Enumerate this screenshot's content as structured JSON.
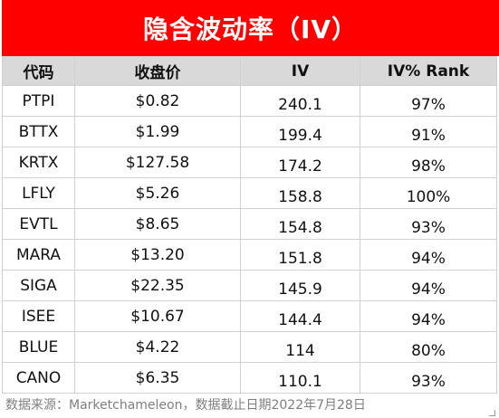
{
  "title": "隐含波动率（IV）",
  "headers": [
    "代码",
    "收盘价",
    "IV",
    "IV% Rank"
  ],
  "rows": [
    {
      "ticker": "PTPI",
      "price": "$0.82",
      "iv": "240.1",
      "rank": "97%"
    },
    {
      "ticker": "BTTX",
      "price": "$1.99",
      "iv": "199.4",
      "rank": "91%"
    },
    {
      "ticker": "KRTX",
      "price": "$127.58",
      "iv": "174.2",
      "rank": "98%"
    },
    {
      "ticker": "LFLY",
      "price": "$5.26",
      "iv": "158.8",
      "rank": "100%"
    },
    {
      "ticker": "EVTL",
      "price": "$8.65",
      "iv": "154.8",
      "rank": "93%"
    },
    {
      "ticker": "MARA",
      "price": "$13.20",
      "iv": "151.8",
      "rank": "94%"
    },
    {
      "ticker": "SIGA",
      "price": "$22.35",
      "iv": "145.9",
      "rank": "94%"
    },
    {
      "ticker": "ISEE",
      "price": "$10.67",
      "iv": "144.4",
      "rank": "94%"
    },
    {
      "ticker": "BLUE",
      "price": "$4.22",
      "iv": "114",
      "rank": "80%"
    },
    {
      "ticker": "CANO",
      "price": "$6.35",
      "iv": "110.1",
      "rank": "93%"
    }
  ],
  "footer": "数据来源：Marketchameleon，数据截止日期2022年7月28日",
  "colors": {
    "title_bg": "#ff0000",
    "header_bg": "#d9d9d9",
    "footer_text": "#7f7f7f"
  }
}
